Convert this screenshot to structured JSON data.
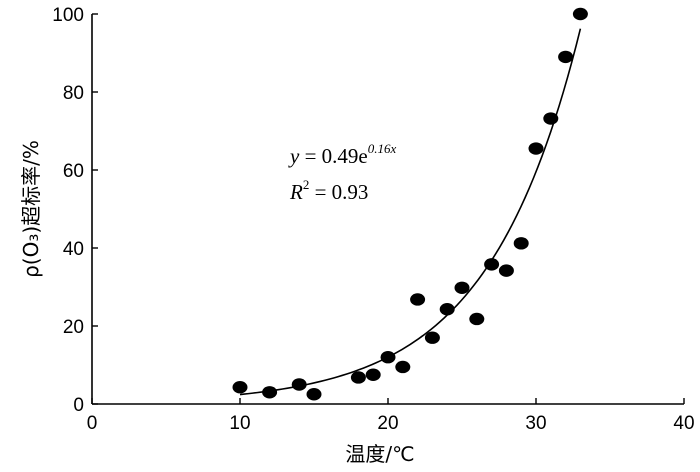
{
  "chart_data": {
    "type": "scatter",
    "xlabel": "温度/℃",
    "ylabel": "ρ(O₃)超标率/%",
    "xlim": [
      0,
      40
    ],
    "ylim": [
      0,
      100
    ],
    "xticks": [
      "0",
      "10",
      "20",
      "30",
      "40"
    ],
    "yticks": [
      "0",
      "20",
      "40",
      "60",
      "80",
      "100"
    ],
    "grid": false,
    "points": [
      {
        "x": 10,
        "y": 4.3
      },
      {
        "x": 12,
        "y": 3.0
      },
      {
        "x": 14,
        "y": 5.0
      },
      {
        "x": 15,
        "y": 2.5
      },
      {
        "x": 18,
        "y": 6.8
      },
      {
        "x": 19,
        "y": 7.5
      },
      {
        "x": 20,
        "y": 12.0
      },
      {
        "x": 21,
        "y": 9.5
      },
      {
        "x": 22,
        "y": 26.8
      },
      {
        "x": 23,
        "y": 17.0
      },
      {
        "x": 24,
        "y": 24.3
      },
      {
        "x": 25,
        "y": 29.8
      },
      {
        "x": 26,
        "y": 21.8
      },
      {
        "x": 27,
        "y": 35.8
      },
      {
        "x": 28,
        "y": 34.2
      },
      {
        "x": 29,
        "y": 41.2
      },
      {
        "x": 30,
        "y": 65.5
      },
      {
        "x": 31,
        "y": 73.2
      },
      {
        "x": 32,
        "y": 89.0
      },
      {
        "x": 33,
        "y": 100.0
      }
    ],
    "fit": {
      "equation_prefix": "y",
      "equation_eq": " = 0.49e",
      "equation_exp": "0.16x",
      "r2_prefix": "R",
      "r2_sup": "2",
      "r2_rest": " = 0.93",
      "a": 0.49,
      "b": 0.16,
      "x_range": [
        10,
        33
      ]
    }
  }
}
